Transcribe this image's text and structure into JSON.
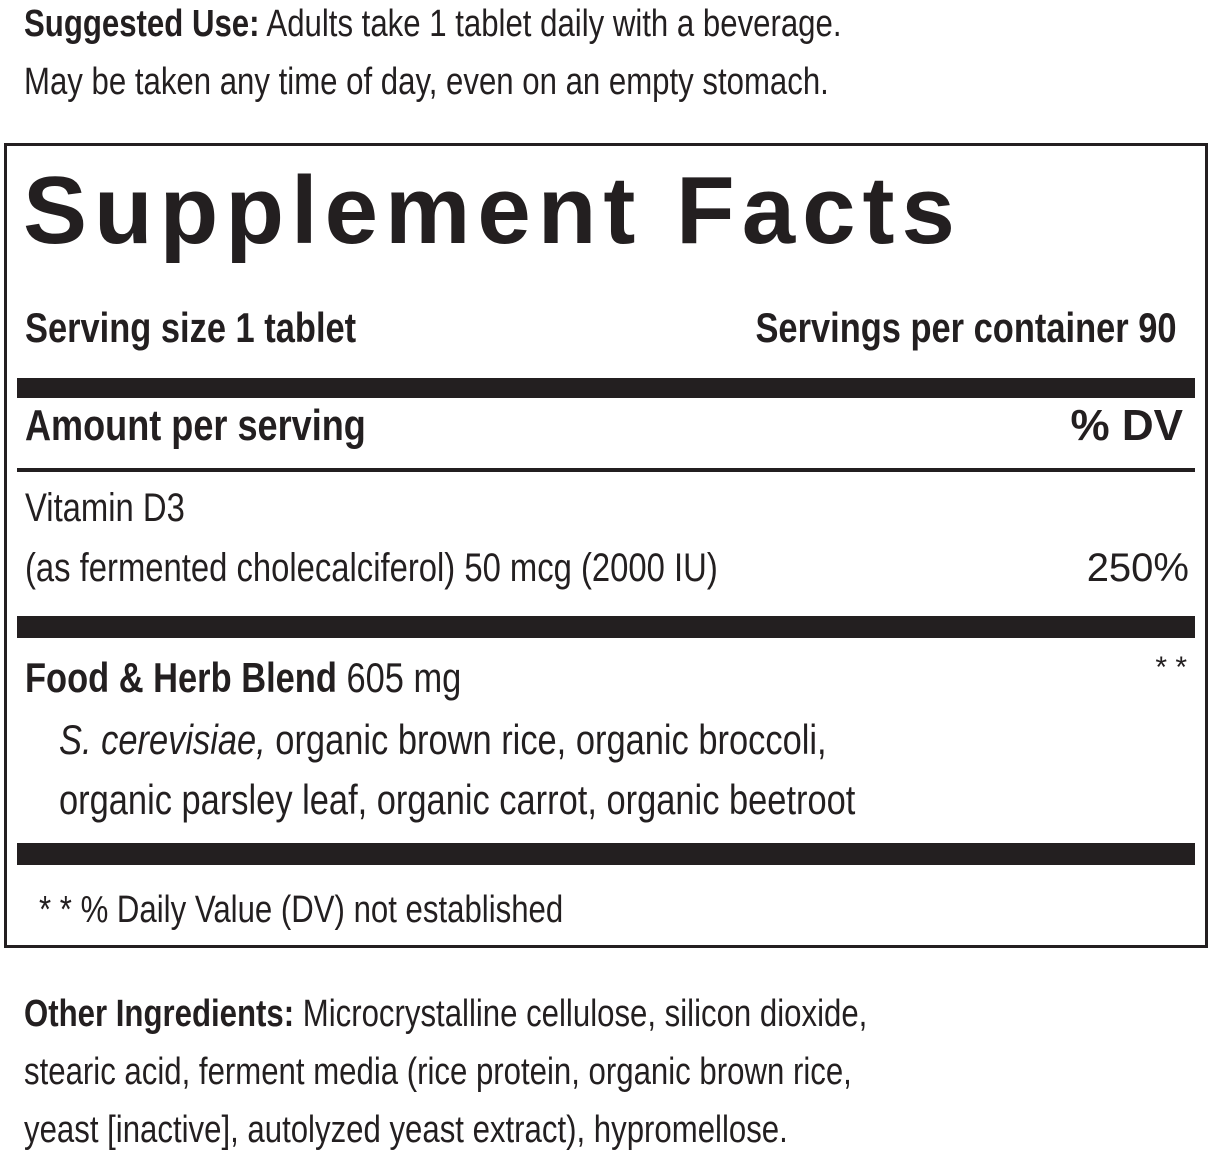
{
  "suggested_use": {
    "label": "Suggested Use:",
    "line1": "Adults take 1 tablet daily with a beverage.",
    "line2": "May be taken any time of day, even on an empty stomach."
  },
  "facts": {
    "title": "Supplement Facts",
    "serving_size": "Serving size 1 tablet",
    "servings_per_container": "Servings per container 90",
    "amount_header": "Amount per serving",
    "dv_header": "% DV",
    "vitamin_name": "Vitamin D3",
    "vitamin_detail": "(as fermented cholecalciferol) 50 mcg (2000 IU)",
    "vitamin_dv": "250%",
    "blend_name": "Food & Herb Blend",
    "blend_amount": "605 mg",
    "blend_dv": "* *",
    "blend_italic": "S. cerevisiae,",
    "blend_line1": " organic brown rice, organic broccoli,",
    "blend_line2": "organic parsley leaf, organic carrot, organic beetroot",
    "footnote": "* * % Daily Value (DV) not established"
  },
  "other": {
    "label": "Other Ingredients:",
    "line1": "Microcrystalline cellulose, silicon dioxide,",
    "line2": "stearic acid, ferment media (rice protein, organic brown rice,",
    "line3": "yeast [inactive], autolyzed yeast extract), hypromellose."
  }
}
